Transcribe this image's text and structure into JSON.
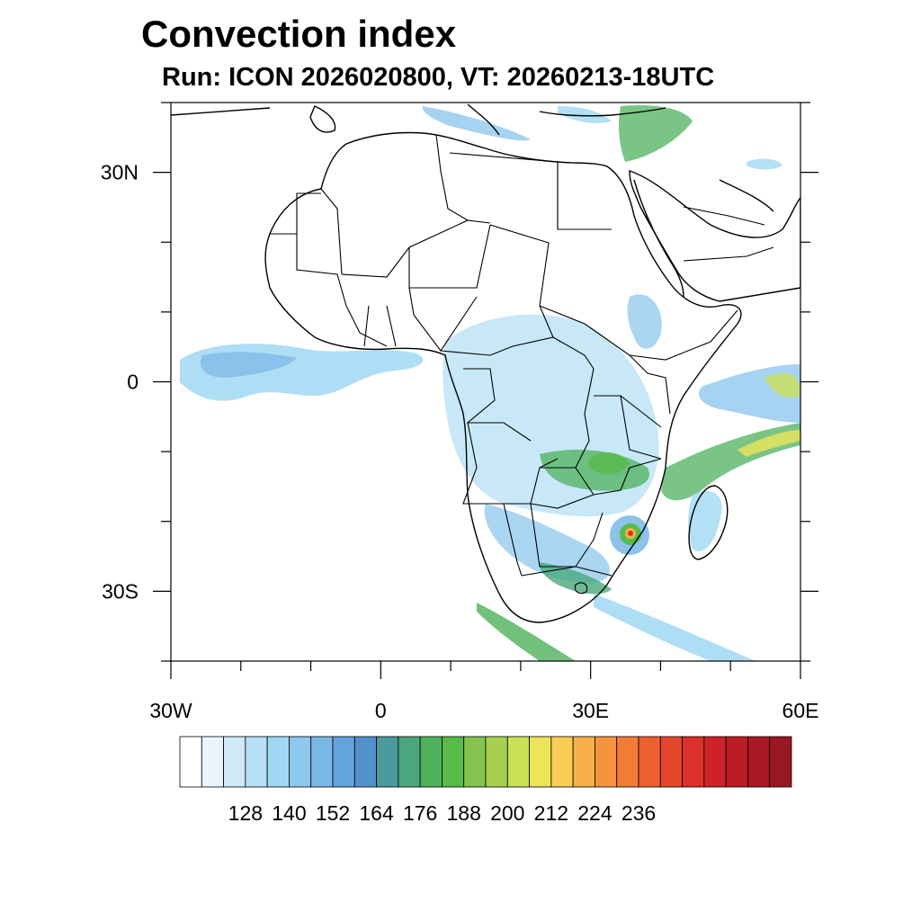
{
  "title": "Convection index",
  "subtitle": "Run: ICON 2026020800,  VT: 20260213-18UTC",
  "map": {
    "projection": "cylindrical-equidistant",
    "lon_range": [
      -30,
      60
    ],
    "lat_range": [
      -40,
      40
    ],
    "lat_ticks": [
      {
        "value": 30,
        "label": "30N"
      },
      {
        "value": 0,
        "label": "0"
      },
      {
        "value": -30,
        "label": "30S"
      }
    ],
    "lon_ticks": [
      {
        "value": -30,
        "label": "30W"
      },
      {
        "value": 0,
        "label": "0"
      },
      {
        "value": 30,
        "label": "30E"
      },
      {
        "value": 60,
        "label": "60E"
      }
    ],
    "minor_tick_step_deg": 10
  },
  "colorbar": {
    "colors": [
      "#ffffff",
      "#e9f5fb",
      "#cfe9f7",
      "#b6e0f5",
      "#a0d8f3",
      "#8ec8ee",
      "#79b7e6",
      "#63a4dc",
      "#5192cc",
      "#4a9a9e",
      "#4aa77c",
      "#4eb25c",
      "#58ba48",
      "#84c44c",
      "#a8d050",
      "#cce056",
      "#eee45a",
      "#f8cc56",
      "#f7b04a",
      "#f5943e",
      "#f27c36",
      "#ec6030",
      "#e4462c",
      "#dc3029",
      "#cc2228",
      "#bc1c26",
      "#aa1824",
      "#9a1822"
    ],
    "labels": [
      "128",
      "140",
      "152",
      "164",
      "176",
      "188",
      "200",
      "212",
      "224",
      "236"
    ]
  }
}
